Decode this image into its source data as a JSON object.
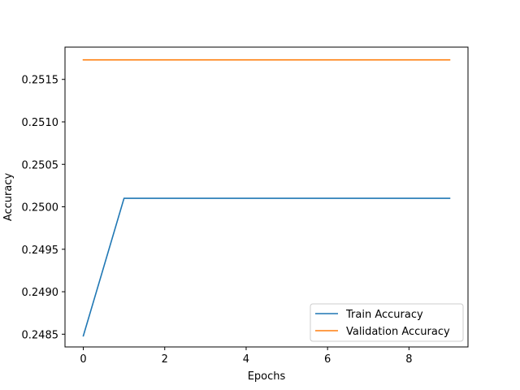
{
  "chart_data": {
    "type": "line",
    "title": "",
    "xlabel": "Epochs",
    "ylabel": "Accuracy",
    "x": [
      0,
      1,
      2,
      3,
      4,
      5,
      6,
      7,
      8,
      9
    ],
    "xlim": [
      -0.45,
      9.45
    ],
    "ylim": [
      0.24835,
      0.25188
    ],
    "xticks": [
      0,
      2,
      4,
      6,
      8
    ],
    "xtick_labels": [
      "0",
      "2",
      "4",
      "6",
      "8"
    ],
    "yticks": [
      0.2485,
      0.249,
      0.2495,
      0.25,
      0.2505,
      0.251,
      0.2515
    ],
    "ytick_labels": [
      "0.2485",
      "0.2490",
      "0.2495",
      "0.2500",
      "0.2505",
      "0.2510",
      "0.2515"
    ],
    "grid": false,
    "legend_position": "lower right",
    "series": [
      {
        "name": "Train Accuracy",
        "color": "#1f77b4",
        "values": [
          0.24848,
          0.2501,
          0.2501,
          0.2501,
          0.2501,
          0.2501,
          0.2501,
          0.2501,
          0.2501,
          0.2501
        ]
      },
      {
        "name": "Validation Accuracy",
        "color": "#ff7f0e",
        "values": [
          0.25173,
          0.25173,
          0.25173,
          0.25173,
          0.25173,
          0.25173,
          0.25173,
          0.25173,
          0.25173,
          0.25173
        ]
      }
    ]
  }
}
